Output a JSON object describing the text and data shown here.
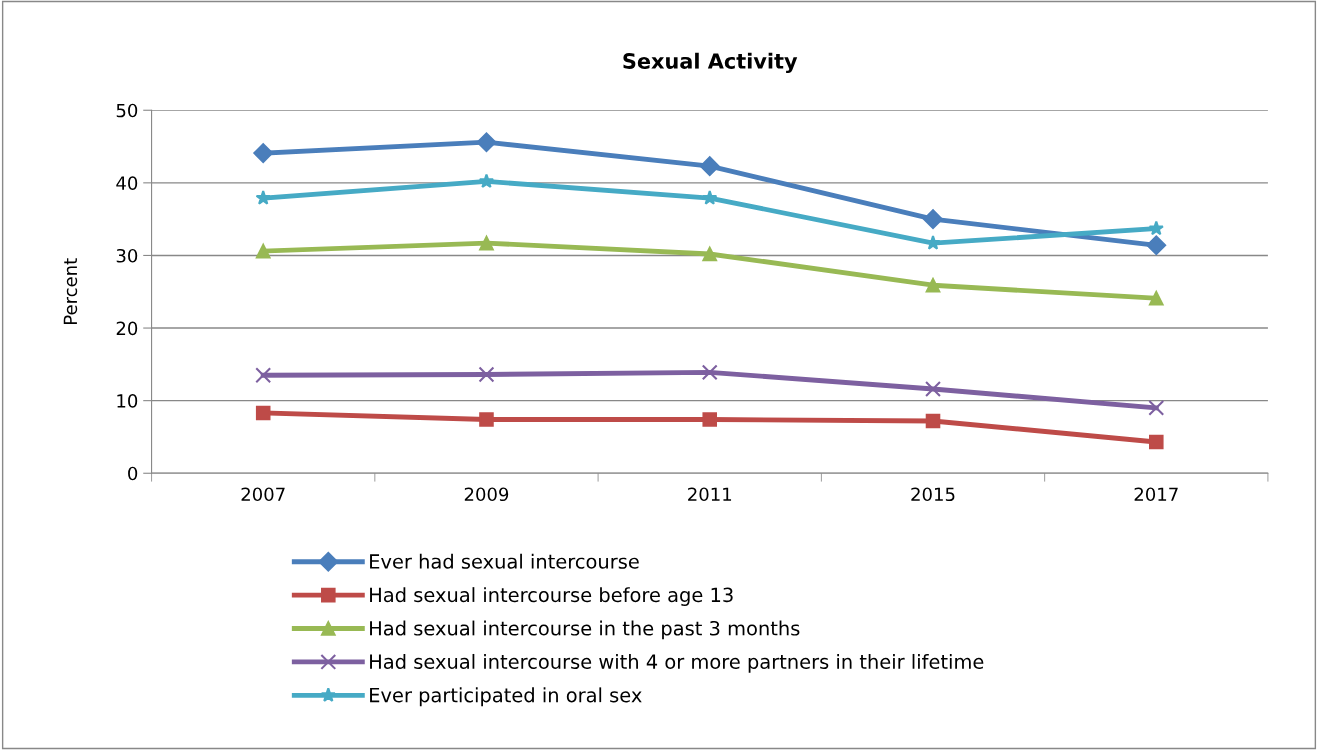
{
  "chart_data": {
    "type": "line",
    "title": "Sexual Activity",
    "ylabel": "Percent",
    "categories": [
      "2007",
      "2009",
      "2011",
      "2015",
      "2017"
    ],
    "series": [
      {
        "name": "Ever had sexual intercourse",
        "color": "#4a7ebb",
        "marker": "diamond",
        "values": [
          44.1,
          45.6,
          42.3,
          35.0,
          31.4
        ]
      },
      {
        "name": "Had sexual intercourse before age 13",
        "color": "#be4b48",
        "marker": "square",
        "values": [
          8.3,
          7.4,
          7.4,
          7.2,
          4.3
        ]
      },
      {
        "name": "Had sexual intercourse in the past 3 months",
        "color": "#98b954",
        "marker": "triangle",
        "values": [
          30.6,
          31.7,
          30.2,
          25.9,
          24.1
        ]
      },
      {
        "name": "Had sexual intercourse with 4 or more partners in their lifetime",
        "color": "#7d60a0",
        "marker": "cross",
        "values": [
          13.5,
          13.6,
          13.9,
          11.6,
          9.0
        ]
      },
      {
        "name": "Ever participated in oral sex",
        "color": "#46aac5",
        "marker": "star",
        "values": [
          37.9,
          40.2,
          37.9,
          31.7,
          33.7
        ]
      }
    ],
    "ylim": [
      0,
      50
    ],
    "yticks": [
      0,
      10,
      20,
      30,
      40,
      50
    ],
    "grid": "y",
    "legend": "bottom",
    "line_style": "solid"
  }
}
